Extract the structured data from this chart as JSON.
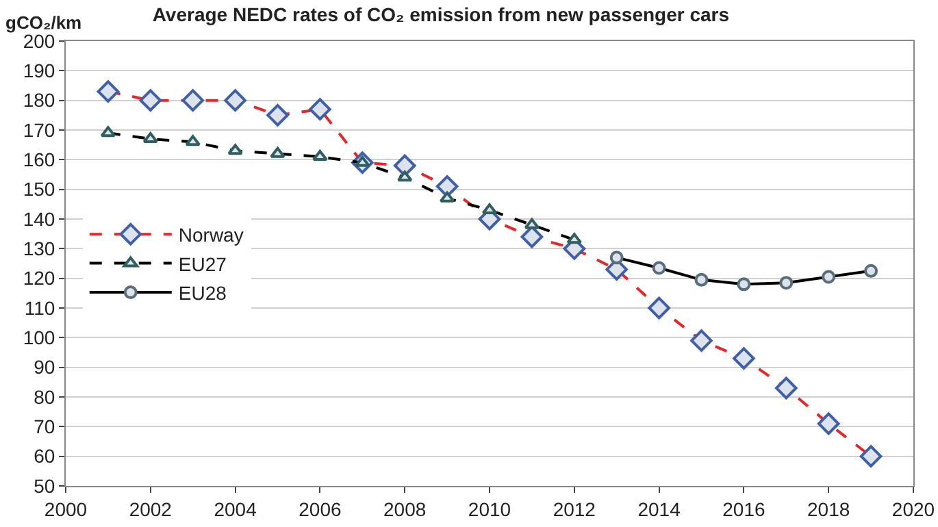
{
  "chart_data": {
    "type": "line",
    "title": "Average NEDC rates of CO₂ emission from new passenger cars",
    "ylabel": "gCO₂/km",
    "xlim": [
      2000,
      2020
    ],
    "xticks": [
      2000,
      2002,
      2004,
      2006,
      2008,
      2010,
      2012,
      2014,
      2016,
      2018,
      2020
    ],
    "ylim": [
      50,
      200
    ],
    "yticks": [
      50,
      60,
      70,
      80,
      90,
      100,
      110,
      120,
      130,
      140,
      150,
      160,
      170,
      180,
      190,
      200
    ],
    "grid": "y",
    "legend": "left",
    "series": [
      {
        "name": "Norway",
        "color": "#e8262a",
        "marker": "diamond",
        "line_style": "dashed",
        "x": [
          2001,
          2002,
          2003,
          2004,
          2005,
          2006,
          2007,
          2008,
          2009,
          2010,
          2011,
          2012,
          2013,
          2014,
          2015,
          2016,
          2017,
          2018,
          2019
        ],
        "values": [
          183,
          180,
          180,
          180,
          175,
          177,
          159,
          158,
          151,
          140,
          134,
          130,
          123,
          110,
          99,
          93,
          83,
          71,
          60
        ]
      },
      {
        "name": "EU27",
        "color": "#000000",
        "marker": "triangle",
        "line_style": "dashed",
        "x": [
          2001,
          2002,
          2003,
          2004,
          2005,
          2006,
          2007,
          2008,
          2009,
          2010,
          2011,
          2012
        ],
        "values": [
          169,
          167,
          166,
          163,
          162,
          161,
          159,
          154,
          147,
          143,
          138,
          133
        ]
      },
      {
        "name": "EU28",
        "color": "#000000",
        "marker": "circle",
        "line_style": "solid",
        "x": [
          2013,
          2014,
          2015,
          2016,
          2017,
          2018,
          2019
        ],
        "values": [
          127,
          123.5,
          119.5,
          118,
          118.5,
          120.5,
          122.5
        ]
      }
    ]
  }
}
